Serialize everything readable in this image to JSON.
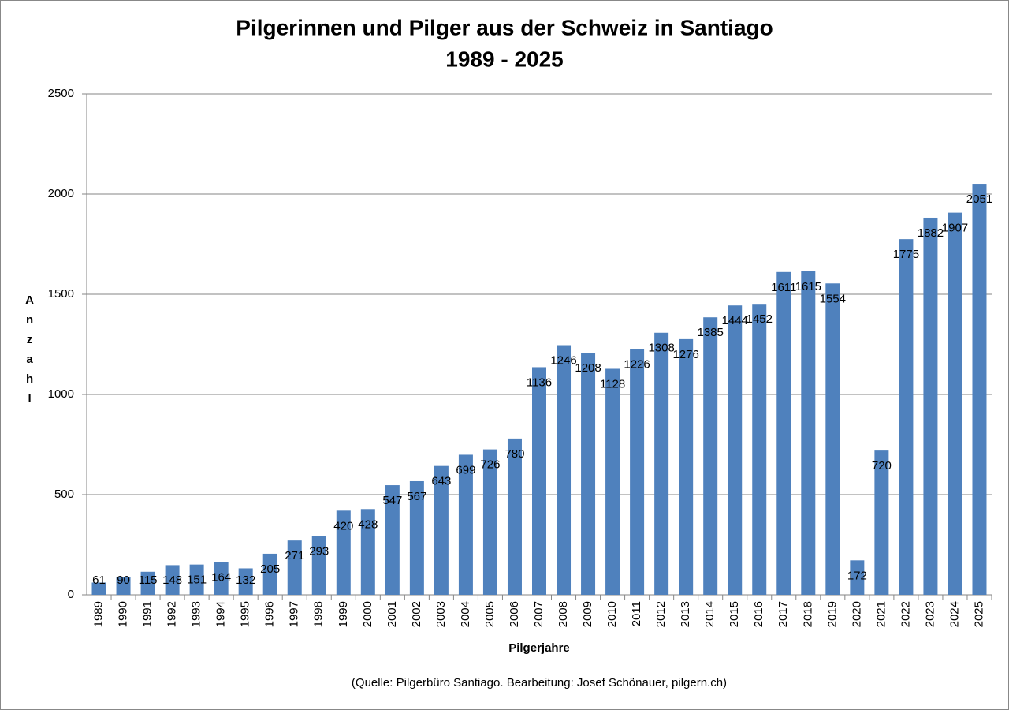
{
  "chart_data": {
    "type": "bar",
    "title": [
      "Pilgerinnen und Pilger aus der Schweiz in Santiago",
      "1989 - 2025"
    ],
    "y_label": "Anzahl",
    "x_label": "Pilgerjahre",
    "source": "(Quelle: Pilgerbüro Santiago. Bearbeitung: Josef Schönauer, pilgern.ch)",
    "categories": [
      "1989",
      "1990",
      "1991",
      "1992",
      "1993",
      "1994",
      "1995",
      "1996",
      "1997",
      "1998",
      "1999",
      "2000",
      "2001",
      "2002",
      "2003",
      "2004",
      "2005",
      "2006",
      "2007",
      "2008",
      "2009",
      "2010",
      "2011",
      "2012",
      "2013",
      "2014",
      "2015",
      "2016",
      "2017",
      "2018",
      "2019",
      "2020",
      "2021",
      "2022",
      "2023",
      "2024",
      "2025"
    ],
    "values": [
      61,
      90,
      115,
      148,
      151,
      164,
      132,
      205,
      271,
      293,
      420,
      428,
      547,
      567,
      643,
      699,
      726,
      780,
      1136,
      1246,
      1208,
      1128,
      1226,
      1308,
      1276,
      1385,
      1444,
      1452,
      1611,
      1615,
      1554,
      172,
      720,
      1775,
      1882,
      1907,
      2051
    ],
    "color": "#4f81bd",
    "ylim": [
      0,
      2500
    ],
    "yticks": [
      0,
      500,
      1000,
      1500,
      2000,
      2500
    ],
    "grid": true
  }
}
